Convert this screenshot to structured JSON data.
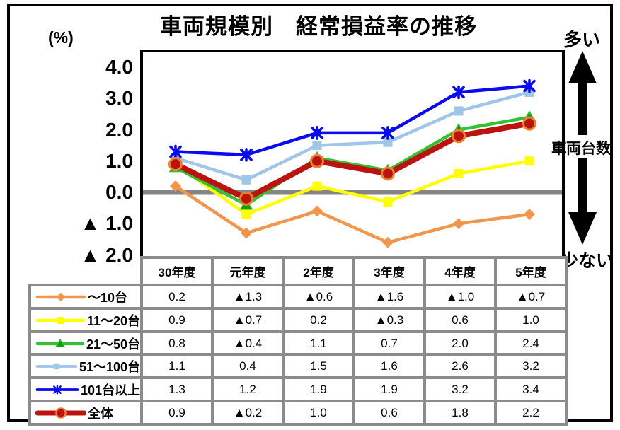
{
  "title": "車両規模別　経常損益率の推移",
  "y_axis": {
    "unit_label": "(%)",
    "ticks": [
      "4.0",
      "3.0",
      "2.0",
      "1.0",
      "0.0",
      "▲ 1.0",
      "▲ 2.0"
    ],
    "tick_values": [
      4,
      3,
      2,
      1,
      0,
      -1,
      -2
    ]
  },
  "right_annotation": {
    "top": "多い",
    "middle": "車両台数",
    "bottom": "少ない"
  },
  "colors": {
    "frame": "#000000",
    "grid_gray": "#8B8B8B",
    "zero_line": "#858585",
    "circle_ring": "#E8832C",
    "triangle_fill": "#0D9F0D"
  },
  "chart_data": {
    "type": "line",
    "title": "車両規模別　経常損益率の推移",
    "xlabel": "",
    "ylabel": "(%)",
    "ylim": [
      -2.0,
      4.5
    ],
    "grid": false,
    "zero_line": true,
    "legend_position": "table-left",
    "categories": [
      "30年度",
      "元年度",
      "2年度",
      "3年度",
      "4年度",
      "5年度"
    ],
    "series": [
      {
        "name": "～10台",
        "color": "#F2964B",
        "marker": "diamond",
        "values": [
          0.2,
          -1.3,
          -0.6,
          -1.6,
          -1.0,
          -0.7
        ]
      },
      {
        "name": "11～20台",
        "color": "#FFFF00",
        "marker": "square",
        "values": [
          0.9,
          -0.7,
          0.2,
          -0.3,
          0.6,
          1.0
        ]
      },
      {
        "name": "21～50台",
        "color": "#32C132",
        "marker": "triangle",
        "values": [
          0.8,
          -0.4,
          1.1,
          0.7,
          2.0,
          2.4
        ]
      },
      {
        "name": "51～100台",
        "color": "#9FC5E8",
        "marker": "square",
        "values": [
          1.1,
          0.4,
          1.5,
          1.6,
          2.6,
          3.2
        ]
      },
      {
        "name": "101台以上",
        "color": "#0A0AEF",
        "marker": "x",
        "values": [
          1.3,
          1.2,
          1.9,
          1.9,
          3.2,
          3.4
        ]
      },
      {
        "name": "全体",
        "color": "#BB1410",
        "marker": "circle",
        "values": [
          0.9,
          -0.2,
          1.0,
          0.6,
          1.8,
          2.2
        ],
        "emphasis": true
      }
    ]
  },
  "table": {
    "col_headers": [
      "30年度",
      "元年度",
      "2年度",
      "3年度",
      "4年度",
      "5年度"
    ],
    "rows": [
      {
        "label": "～10台",
        "cells": [
          "0.2",
          "▲1.3",
          "▲0.6",
          "▲1.6",
          "▲1.0",
          "▲0.7"
        ]
      },
      {
        "label": "11～20台",
        "cells": [
          "0.9",
          "▲0.7",
          "0.2",
          "▲0.3",
          "0.6",
          "1.0"
        ]
      },
      {
        "label": "21～50台",
        "cells": [
          "0.8",
          "▲0.4",
          "1.1",
          "0.7",
          "2.0",
          "2.4"
        ]
      },
      {
        "label": "51～100台",
        "cells": [
          "1.1",
          "0.4",
          "1.5",
          "1.6",
          "2.6",
          "3.2"
        ]
      },
      {
        "label": "101台以上",
        "cells": [
          "1.3",
          "1.2",
          "1.9",
          "1.9",
          "3.2",
          "3.4"
        ]
      },
      {
        "label": "全体",
        "cells": [
          "0.9",
          "▲0.2",
          "1.0",
          "0.6",
          "1.8",
          "2.2"
        ]
      }
    ]
  }
}
